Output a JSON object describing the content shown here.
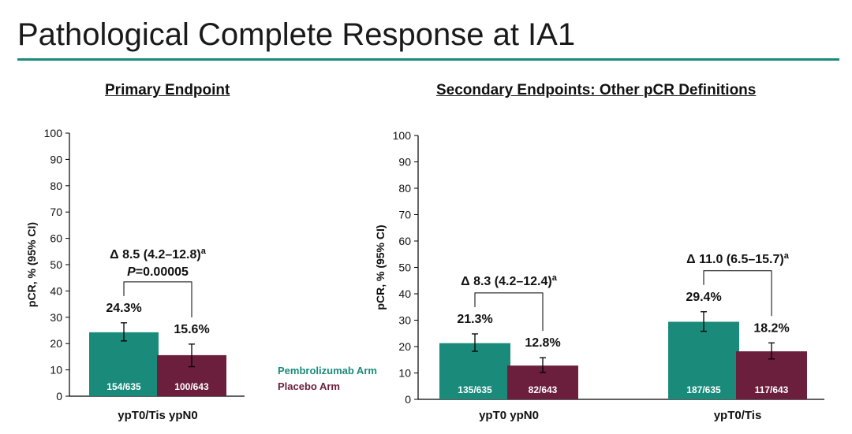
{
  "slide": {
    "title": "Pathological Complete Response at IA1"
  },
  "legend": [
    {
      "name": "Pembrolizumab Arm",
      "color": "#1a8a7a"
    },
    {
      "name": "Placebo Arm",
      "color": "#6b1f3c"
    }
  ],
  "chart_data": [
    {
      "type": "bar",
      "title": "Primary Endpoint",
      "ylabel": "pCR, % (95% CI)",
      "ylim": [
        0,
        100
      ],
      "yticks": [
        "0",
        "10",
        "20",
        "30",
        "40",
        "50",
        "60",
        "70",
        "80",
        "90",
        "100"
      ],
      "categories": [
        "ypT0/Tis ypN0"
      ],
      "series": [
        {
          "name": "Pembrolizumab Arm",
          "color": "#1a8a7a",
          "values": [
            24.3
          ],
          "ci_low": [
            21.0
          ],
          "ci_high": [
            27.9
          ],
          "value_labels": [
            "24.3%"
          ],
          "counts": [
            "154/635"
          ]
        },
        {
          "name": "Placebo Arm",
          "color": "#6b1f3c",
          "values": [
            15.6
          ],
          "ci_low": [
            11.2
          ],
          "ci_high": [
            19.8
          ],
          "value_labels": [
            "15.6%"
          ],
          "counts": [
            "100/643"
          ]
        }
      ],
      "annotations": [
        {
          "category_index": 0,
          "line1": "Δ 8.5 (4.2–12.8)",
          "sup": "a",
          "p_prefix": "P",
          "p_value": "=0.00005"
        }
      ]
    },
    {
      "type": "bar",
      "title": "Secondary Endpoints: Other pCR Definitions",
      "ylabel": "pCR, % (95% CI)",
      "ylim": [
        0,
        100
      ],
      "yticks": [
        "0",
        "10",
        "20",
        "30",
        "40",
        "50",
        "60",
        "70",
        "80",
        "90",
        "100"
      ],
      "categories": [
        "ypT0 ypN0",
        "ypT0/Tis"
      ],
      "series": [
        {
          "name": "Pembrolizumab Arm",
          "color": "#1a8a7a",
          "values": [
            21.3,
            29.4
          ],
          "ci_low": [
            18.2,
            25.8
          ],
          "ci_high": [
            24.8,
            33.2
          ],
          "value_labels": [
            "21.3%",
            "29.4%"
          ],
          "counts": [
            "135/635",
            "187/635"
          ]
        },
        {
          "name": "Placebo Arm",
          "color": "#6b1f3c",
          "values": [
            12.8,
            18.2
          ],
          "ci_low": [
            10.2,
            15.3
          ],
          "ci_high": [
            15.8,
            21.4
          ],
          "value_labels": [
            "12.8%",
            "18.2%"
          ],
          "counts": [
            "82/643",
            "117/643"
          ]
        }
      ],
      "annotations": [
        {
          "category_index": 0,
          "line1": "Δ 8.3 (4.2–12.4)",
          "sup": "a"
        },
        {
          "category_index": 1,
          "line1": "Δ 11.0 (6.5–15.7)",
          "sup": "a"
        }
      ]
    }
  ]
}
